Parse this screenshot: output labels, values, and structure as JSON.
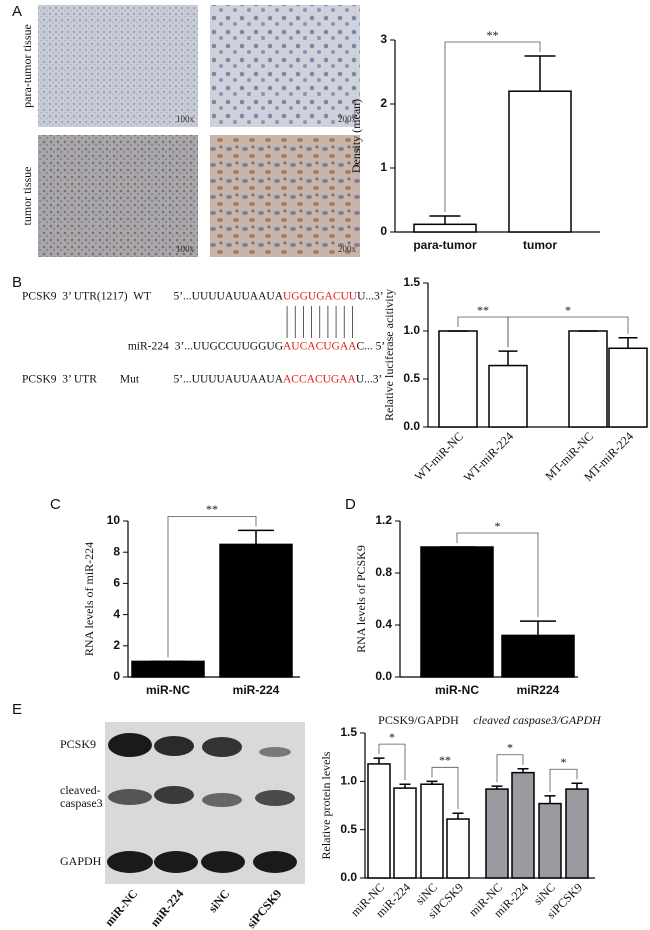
{
  "panel_labels": [
    "A",
    "B",
    "C",
    "D",
    "E"
  ],
  "panel_a_images": {
    "row_labels": [
      "para-tumor tissue",
      "tumor tissue"
    ],
    "magnifications": [
      "100x",
      "200x",
      "100x",
      "200x"
    ]
  },
  "sequences": [
    {
      "name": "PCSK9  3’ UTR(1217)  WT",
      "left": "5’...UUUUAUUAAUA",
      "match": "UGGUGACUU",
      "right": "U...3’"
    },
    {
      "name": "miR-224",
      "left": "3’...UUGCCUUGGUG",
      "match": "AUCACUGAA",
      "right": "C... 5’"
    },
    {
      "name": "PCSK9  3’ UTR        Mut",
      "left": "5’...UUUUAUUAAUA",
      "match": "ACCACUGAA",
      "right": "U...3’"
    }
  ],
  "blot": {
    "rows": [
      [
        "PCSK9"
      ],
      [
        "cleaved-",
        "caspase3"
      ],
      [
        "GAPDH"
      ]
    ],
    "lanes": [
      "miR-NC",
      "miR-224",
      "siNC",
      "siPCSK9"
    ]
  },
  "chart_data": [
    {
      "type": "bar",
      "y_label": "Density  (mean)",
      "categories": [
        "para-tumor",
        "tumor"
      ],
      "values": [
        0.12,
        2.2
      ],
      "errors": [
        0.13,
        0.55
      ],
      "color": "#ffffff",
      "ylim": [
        0,
        3
      ],
      "yticks": [
        0,
        1,
        2,
        3
      ],
      "significance": [
        {
          "pair": [
            0,
            1
          ],
          "label": "**"
        }
      ]
    },
    {
      "type": "bar",
      "y_label": "Relative luciferase acitivity",
      "categories": [
        "WT-miR-NC",
        "WT-miR-224",
        "MT-miR-NC",
        "MT-miR-224"
      ],
      "values": [
        1.0,
        0.64,
        1.0,
        0.82
      ],
      "errors": [
        0,
        0.15,
        0,
        0.11
      ],
      "color": "#ffffff",
      "ylim": [
        0,
        1.5
      ],
      "yticks": [
        {
          "value": 0,
          "label": "0.0"
        },
        {
          "value": 0.5,
          "label": "0.5"
        },
        {
          "value": 1,
          "label": "1.0"
        },
        {
          "value": 1.5,
          "label": "1.5"
        }
      ],
      "significance": [
        {
          "pair": [
            0,
            1
          ],
          "label": "**"
        },
        {
          "pair": [
            1,
            3
          ],
          "label": "*"
        }
      ]
    },
    {
      "type": "bar",
      "y_label": "RNA levels of miR-224",
      "categories": [
        "miR-NC",
        "miR-224"
      ],
      "values": [
        1.0,
        8.5
      ],
      "errors": [
        0,
        0.9
      ],
      "color": "#000000",
      "ylim": [
        0,
        10
      ],
      "yticks": [
        0,
        2,
        4,
        6,
        8,
        10
      ],
      "significance": [
        {
          "pair": [
            0,
            1
          ],
          "label": "**"
        }
      ]
    },
    {
      "type": "bar",
      "y_label": "RNA levels of PCSK9",
      "categories": [
        "miR-NC",
        "miR224"
      ],
      "values": [
        1.0,
        0.32
      ],
      "errors": [
        0,
        0.11
      ],
      "color": "#000000",
      "ylim": [
        0,
        1.2
      ],
      "yticks": [
        {
          "value": 0,
          "label": "0.0"
        },
        {
          "value": 0.4,
          "label": "0.4"
        },
        {
          "value": 0.8,
          "label": "0.8"
        },
        {
          "value": 1.2,
          "label": "1.2"
        }
      ],
      "significance": [
        {
          "pair": [
            0,
            1
          ],
          "label": "*"
        }
      ]
    },
    {
      "type": "bar",
      "y_label": "Relative protein levels",
      "categories": [
        "miR-NC",
        "miR-224",
        "siNC",
        "siPCSK9"
      ],
      "ylim": [
        0,
        1.5
      ],
      "yticks": [
        {
          "value": 0,
          "label": "0.0"
        },
        {
          "value": 0.5,
          "label": "0.5"
        },
        {
          "value": 1,
          "label": "1.0"
        },
        {
          "value": 1.5,
          "label": "1.5"
        }
      ],
      "groups": [
        {
          "title": "PCSK9/GAPDH",
          "color": "#ffffff",
          "values": [
            1.18,
            0.93,
            0.97,
            0.61
          ],
          "errors": [
            0.06,
            0.04,
            0.03,
            0.06
          ],
          "significance": [
            {
              "pair": [
                0,
                1
              ],
              "label": "*"
            },
            {
              "pair": [
                2,
                3
              ],
              "label": "**"
            }
          ]
        },
        {
          "title": "cleaved caspase3/GAPDH",
          "color": "#9a9aa0",
          "values": [
            0.92,
            1.09,
            0.77,
            0.92
          ],
          "errors": [
            0.03,
            0.04,
            0.08,
            0.06
          ],
          "significance": [
            {
              "pair": [
                0,
                1
              ],
              "label": "*"
            },
            {
              "pair": [
                2,
                3
              ],
              "label": "*"
            }
          ]
        }
      ]
    }
  ]
}
